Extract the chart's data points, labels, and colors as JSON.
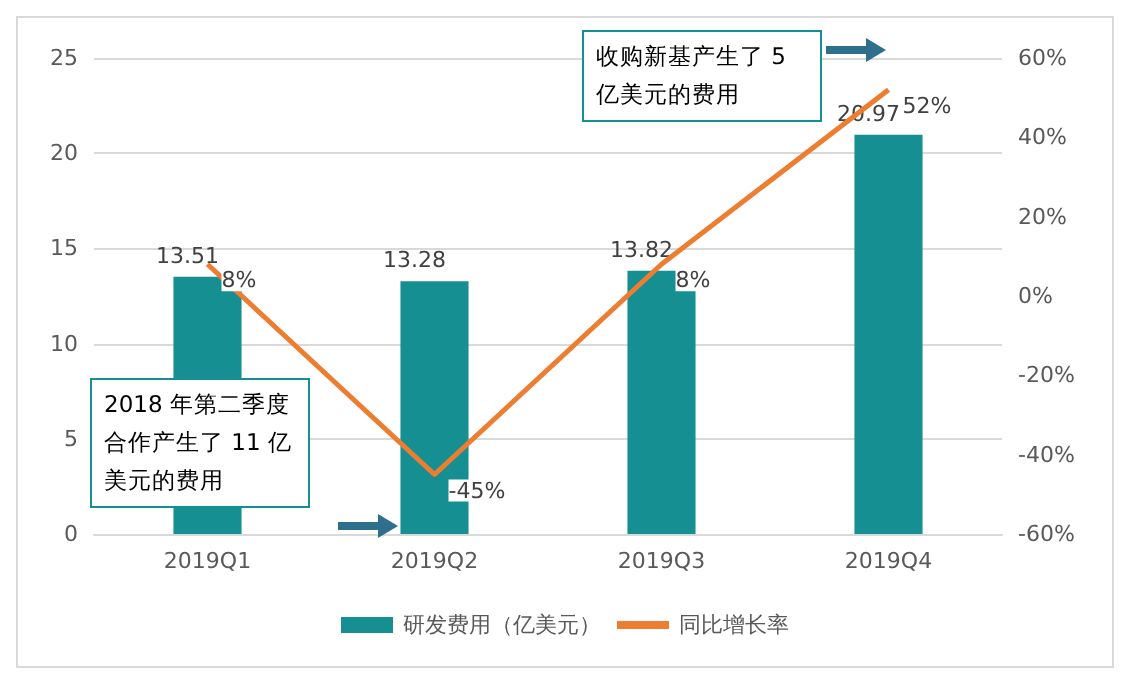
{
  "chart_data": {
    "type": "bar",
    "categories": [
      "2019Q1",
      "2019Q2",
      "2019Q3",
      "2019Q4"
    ],
    "series": [
      {
        "name": "研发费用（亿美元）",
        "color": "#158f91",
        "values": [
          13.51,
          13.28,
          13.82,
          20.97
        ]
      },
      {
        "name": "同比增长率",
        "type": "line",
        "axis": "y2",
        "color": "#ed7d31",
        "values": [
          8,
          -45,
          8,
          52
        ]
      }
    ],
    "ylim": [
      0,
      25
    ],
    "yticks": [
      0,
      5,
      10,
      15,
      20,
      25
    ],
    "y2lim": [
      -60,
      60
    ],
    "y2ticks": [
      {
        "value": -60,
        "label": "-60%"
      },
      {
        "value": -40,
        "label": "-40%"
      },
      {
        "value": -20,
        "label": "-20%"
      },
      {
        "value": 0,
        "label": "0%"
      },
      {
        "value": 20,
        "label": "20%"
      },
      {
        "value": 40,
        "label": "40%"
      },
      {
        "value": 60,
        "label": "60%"
      }
    ],
    "value_labels": [
      [
        "13.51",
        "13.28",
        "13.82",
        "20.97"
      ],
      [
        "8%",
        "-45%",
        "8%",
        "52%"
      ]
    ],
    "annotations": [
      "2018 年第二季度合作产生了 11 亿美元的费用",
      "收购新基产生了 5 亿美元的费用"
    ],
    "grid": "y",
    "legend": "bottom",
    "marker": "none"
  }
}
